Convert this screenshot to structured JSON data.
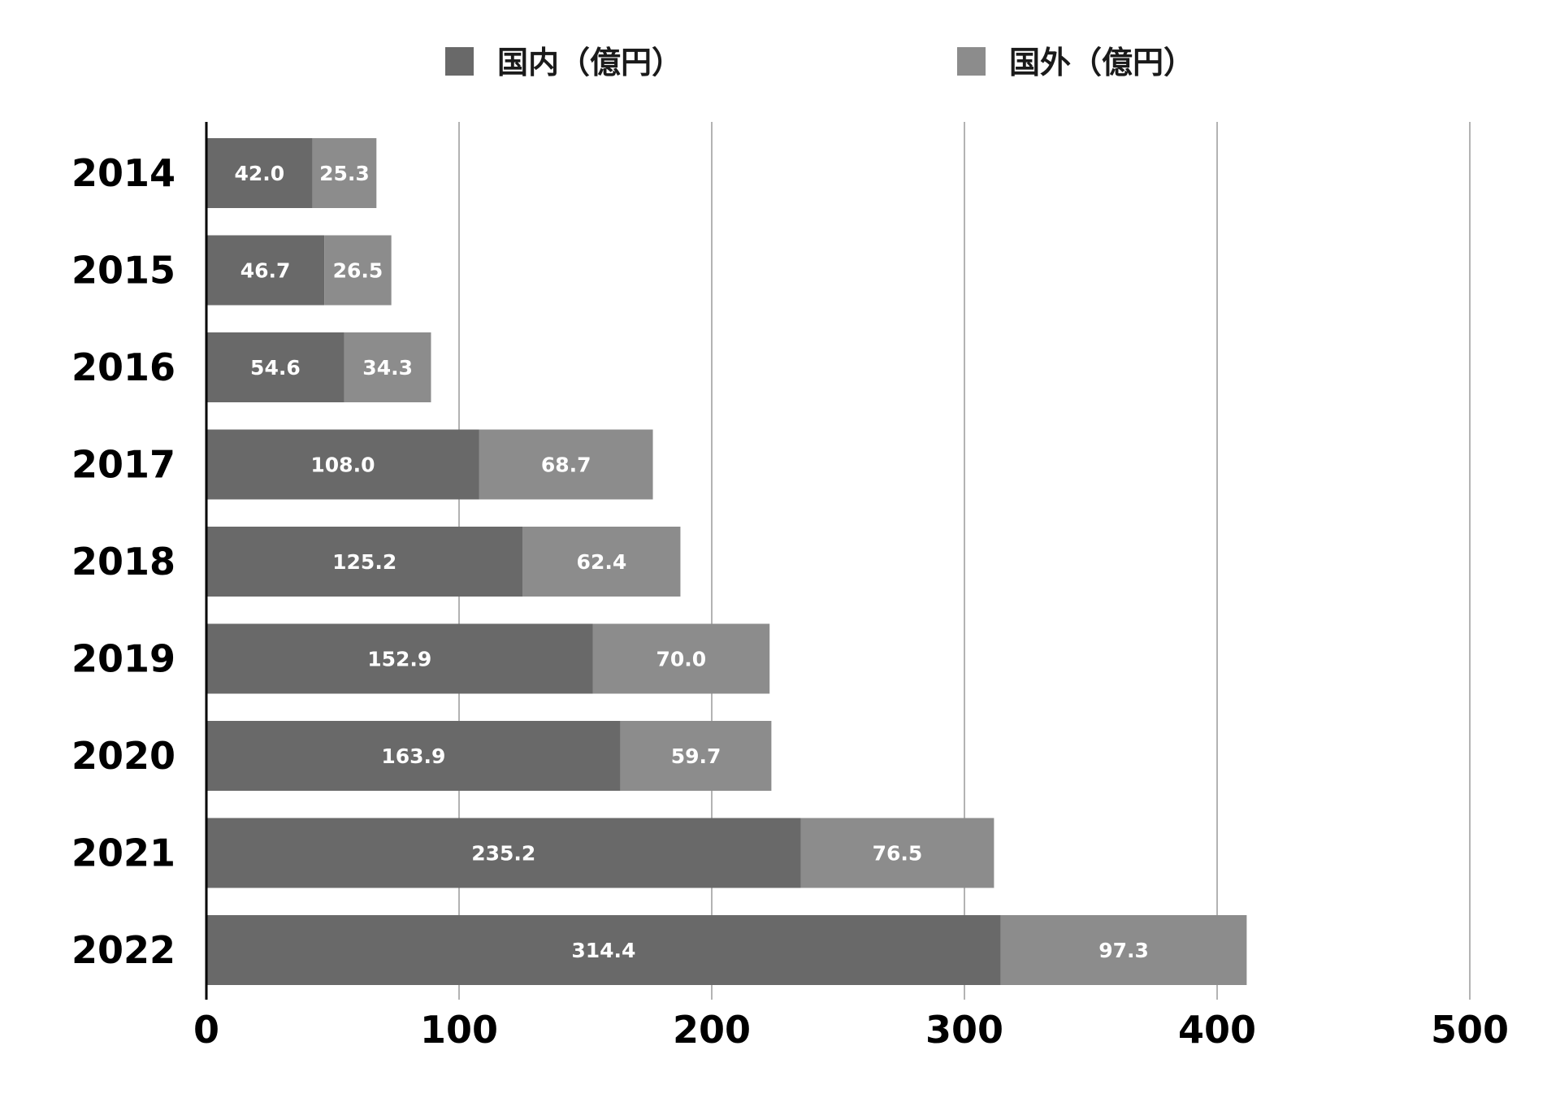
{
  "chart_data": {
    "type": "bar",
    "orientation": "horizontal",
    "stacked": true,
    "categories": [
      "2014",
      "2015",
      "2016",
      "2017",
      "2018",
      "2019",
      "2020",
      "2021",
      "2022"
    ],
    "series": [
      {
        "name": "国内（億円）",
        "color": "#696969",
        "values": [
          42.0,
          46.7,
          54.6,
          108.0,
          125.2,
          152.9,
          163.9,
          235.2,
          314.4
        ]
      },
      {
        "name": "国外（億円）",
        "color": "#8c8c8c",
        "values": [
          25.3,
          26.5,
          34.3,
          68.7,
          62.4,
          70.0,
          59.7,
          76.5,
          97.3
        ]
      }
    ],
    "xlim": [
      0,
      500
    ],
    "xticks": [
      "0",
      "100",
      "200",
      "300",
      "400",
      "500"
    ],
    "grid": "vertical",
    "legend_position": "top",
    "data_labels": true
  }
}
